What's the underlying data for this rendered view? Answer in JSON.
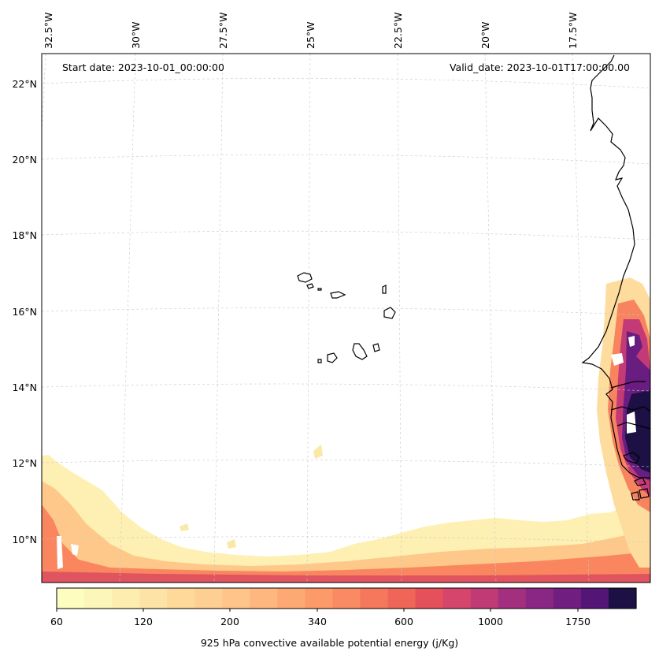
{
  "map": {
    "start_date": "Start date: 2023-10-01_00:00:00",
    "valid_date": "Valid_date: 2023-10-01T17:00:00.00",
    "lon_labels": [
      "32.5°W",
      "30°W",
      "27.5°W",
      "25°W",
      "22.5°W",
      "20°W",
      "17.5°W"
    ],
    "lat_labels": [
      "22°N",
      "20°N",
      "18°N",
      "16°N",
      "14°N",
      "12°N",
      "10°N"
    ]
  },
  "colorbar": {
    "label": "925 hPa convective available potential energy (j/Kg)",
    "tick_labels": [
      "60",
      "120",
      "200",
      "340",
      "600",
      "1000",
      "1750"
    ],
    "colors": [
      "#fcfdbf",
      "#fcf6b8",
      "#fdeeaf",
      "#fde4a6",
      "#fed99a",
      "#fecf92",
      "#fec488",
      "#feb77f",
      "#fea973",
      "#fd9a6a",
      "#fa8a62",
      "#f6785c",
      "#ef6558",
      "#e4515a",
      "#d6456c",
      "#c03a76",
      "#a3307e",
      "#8a2785",
      "#701f81",
      "#531676",
      "#1c1044"
    ]
  }
}
